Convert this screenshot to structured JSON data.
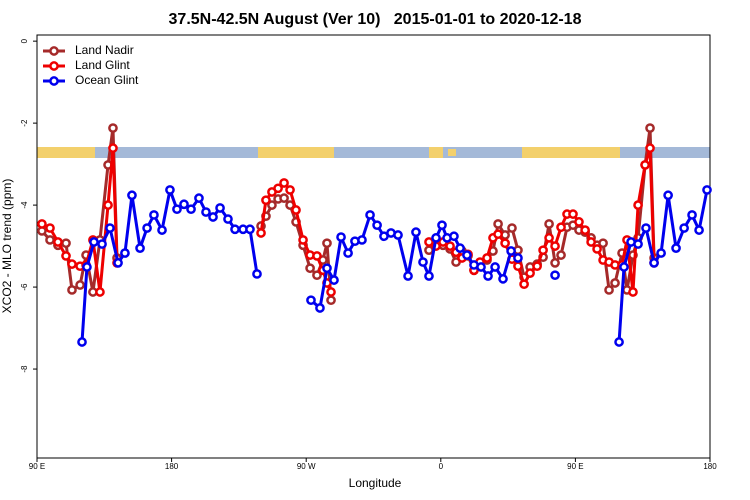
{
  "chart_data": {
    "type": "line",
    "title": "37.5N-42.5N August (Ver 10)   2015-01-01 to 2020-12-18",
    "x_label": "Longitude",
    "y_label": "XCO2 - MLO trend (ppm)",
    "xlim": [
      90,
      540
    ],
    "ylim": [
      -10.17,
      0.15
    ],
    "xticks": [
      {
        "value": 90,
        "label": "90 E"
      },
      {
        "value": 180,
        "label": "180"
      },
      {
        "value": 270,
        "label": "90 W"
      },
      {
        "value": 360,
        "label": "0"
      },
      {
        "value": 450,
        "label": "90 E"
      },
      {
        "value": 540,
        "label": "180"
      }
    ],
    "yticks": [
      0,
      -2,
      -4,
      -6,
      -8
    ],
    "legend": "top-left",
    "series": [
      {
        "name": "Land Nadir",
        "color": "#a52a2a",
        "x": [
          93.3,
          98.7,
          104.0,
          109.4,
          113.4,
          118.8,
          122.8,
          127.4,
          132.1,
          137.5,
          140.8,
          143.5,
          190,
          239.8,
          243.1,
          247.1,
          251.2,
          255.2,
          259.2,
          263.2,
          267.9,
          272.6,
          277.2,
          281.2,
          283.9,
          286.6,
          320,
          352.1,
          356.8,
          361.5,
          366.2,
          370.2,
          374.2,
          378.2,
          382.2,
          386.2,
          390.9,
          394.9,
          398.3,
          403.0,
          407.6,
          411.6,
          415.7,
          419.7,
          424.4,
          428.4,
          432.4,
          436.4,
          440.4,
          444.4,
          448.4,
          452.4,
          456.5,
          460.5,
          464.5,
          468.5,
          472.5,
          476.5,
          481.2,
          484.5,
          488.5,
          491.9,
          496.6,
          499.9,
          502.6
        ],
        "values": [
          -4.63,
          -4.85,
          -4.98,
          -4.93,
          -6.07,
          -5.95,
          -5.22,
          -6.12,
          -4.85,
          -3.02,
          -2.12,
          -5.29,
          null,
          -4.51,
          -4.27,
          -4.0,
          -3.85,
          -3.83,
          -4.0,
          -4.41,
          -4.98,
          -5.54,
          -5.71,
          -5.34,
          -4.93,
          -6.32,
          null,
          -5.1,
          -4.93,
          -4.98,
          -5.07,
          -5.39,
          -5.12,
          -5.24,
          -5.59,
          -5.49,
          -5.34,
          -5.12,
          -4.46,
          -4.73,
          -4.56,
          -5.1,
          -5.76,
          -5.51,
          -5.44,
          -5.27,
          -4.46,
          -5.41,
          -5.22,
          -4.54,
          -4.49,
          -4.61,
          -4.66,
          -4.8,
          -4.98,
          -4.93,
          -6.07,
          -5.9,
          -5.17,
          -6.07,
          -5.22,
          -4.8,
          -3.02,
          -2.12,
          -5.29
        ]
      },
      {
        "name": "Land Glint",
        "color": "#ee0000",
        "x": [
          93.3,
          98.7,
          104.0,
          109.4,
          113.4,
          118.8,
          122.8,
          127.4,
          132.1,
          137.5,
          140.8,
          143.5,
          190,
          239.8,
          243.1,
          247.1,
          251.2,
          255.2,
          259.2,
          263.2,
          267.9,
          272.6,
          277.2,
          281.2,
          283.9,
          286.6,
          320,
          352.1,
          356.8,
          361.5,
          366.2,
          370.2,
          374.2,
          378.2,
          382.2,
          386.2,
          390.9,
          394.9,
          398.3,
          403.0,
          407.6,
          411.6,
          415.7,
          419.7,
          424.4,
          428.4,
          432.4,
          436.4,
          440.4,
          444.4,
          448.4,
          452.4,
          456.5,
          460.5,
          464.5,
          468.5,
          472.5,
          476.5,
          481.2,
          484.5,
          488.5,
          491.9,
          496.6,
          499.9,
          502.6
        ],
        "values": [
          -4.46,
          -4.56,
          -4.9,
          -5.24,
          -5.44,
          -5.49,
          -5.46,
          -4.85,
          -6.12,
          -4.0,
          -2.61,
          -5.41,
          null,
          -4.68,
          -3.88,
          -3.68,
          -3.59,
          -3.46,
          -3.63,
          -4.12,
          -4.85,
          -5.22,
          -5.24,
          -5.59,
          -5.9,
          -6.12,
          null,
          -4.9,
          -5.0,
          -4.9,
          -5.0,
          -5.15,
          -5.29,
          -5.2,
          -5.59,
          -5.39,
          -5.29,
          -4.8,
          -4.71,
          -4.93,
          -5.32,
          -5.49,
          -5.93,
          -5.66,
          -5.49,
          -5.1,
          -4.8,
          -5.0,
          -4.54,
          -4.22,
          -4.22,
          -4.41,
          -4.61,
          -4.9,
          -5.07,
          -5.34,
          -5.39,
          -5.46,
          -5.46,
          -4.85,
          -6.12,
          -4.0,
          -3.02,
          -2.61,
          -5.41
        ]
      },
      {
        "name": "Ocean Glint",
        "color": "#0000ee",
        "x": [
          120.1,
          123.4,
          128.1,
          133.5,
          138.8,
          144.2,
          148.8,
          153.5,
          158.9,
          163.6,
          168.2,
          173.6,
          178.9,
          183.6,
          188.3,
          193.0,
          198.3,
          203.0,
          207.7,
          212.4,
          217.7,
          222.4,
          227.8,
          232.4,
          237.1,
          255,
          273.2,
          279.2,
          283.9,
          288.6,
          293.3,
          298.0,
          302.6,
          307.3,
          312.7,
          317.4,
          322.0,
          326.7,
          331.4,
          338.1,
          343.4,
          348.1,
          352.1,
          356.8,
          360.8,
          364.2,
          368.8,
          372.9,
          377.5,
          382.2,
          386.9,
          391.6,
          396.3,
          401.6,
          407.0,
          411.6,
          424,
          436.4,
          458,
          479.2,
          482.5,
          487.2,
          491.9,
          497.2,
          502.6,
          507.3,
          512.0,
          517.3,
          522.7,
          528.0,
          532.7,
          538.0
        ],
        "values": [
          -7.34,
          -5.51,
          -4.9,
          -4.95,
          -4.56,
          -5.41,
          -5.17,
          -3.76,
          -5.05,
          -4.56,
          -4.24,
          -4.61,
          -3.63,
          -4.1,
          -3.98,
          -4.1,
          -3.83,
          -4.17,
          -4.29,
          -4.07,
          -4.34,
          -4.59,
          -4.59,
          -4.59,
          -5.68,
          null,
          -6.32,
          -6.51,
          -5.54,
          -5.83,
          -4.78,
          -5.17,
          -4.88,
          -4.85,
          -4.24,
          -4.49,
          -4.76,
          -4.68,
          -4.73,
          -5.73,
          -4.66,
          -5.39,
          -5.73,
          -4.8,
          -4.49,
          -4.8,
          -4.76,
          -5.05,
          -5.22,
          -5.46,
          -5.51,
          -5.73,
          -5.51,
          -5.8,
          -5.12,
          -5.29,
          null,
          -5.71,
          null,
          -7.34,
          -5.51,
          -4.9,
          -4.95,
          -4.56,
          -5.41,
          -5.17,
          -3.76,
          -5.05,
          -4.56,
          -4.24,
          -4.61,
          -3.63
        ]
      }
    ]
  }
}
